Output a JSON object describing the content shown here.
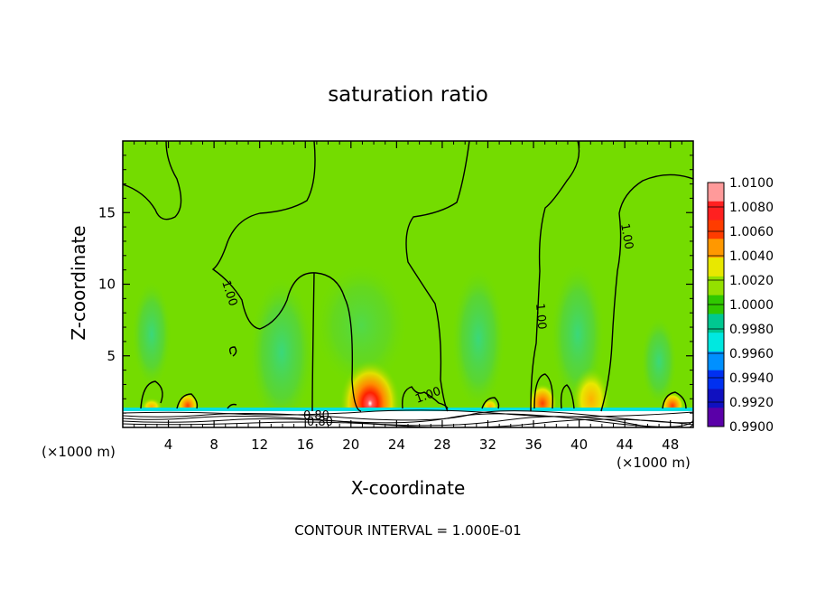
{
  "chart_data": {
    "type": "heatmap",
    "title": "saturation ratio",
    "xlabel": "X-coordinate",
    "ylabel": "Z-coordinate",
    "x_unit_left": "(×1000 m)",
    "x_unit_right": "(×1000 m)",
    "xlim": [
      0,
      50
    ],
    "ylim": [
      0,
      20
    ],
    "x_ticks": [
      "4",
      "8",
      "12",
      "16",
      "20",
      "24",
      "28",
      "32",
      "36",
      "40",
      "44",
      "48"
    ],
    "y_ticks": [
      "5",
      "10",
      "15"
    ],
    "colorbar_labels": [
      "1.0100",
      "1.0080",
      "1.0060",
      "1.0040",
      "1.0020",
      "1.0000",
      "0.9980",
      "0.9960",
      "0.9940",
      "0.9920",
      "0.9900"
    ],
    "colorbar_colors": [
      "#ff9a9a",
      "#ff2020",
      "#ff3c00",
      "#ff9800",
      "#e8e800",
      "#94e000",
      "#30c800",
      "#00c890",
      "#00e8e0",
      "#0090ff",
      "#0030f0",
      "#1010c0",
      "#5a00a8"
    ],
    "contour_labels": [
      "1.00",
      "1.00",
      "1.00",
      "1.00",
      "0.80",
      "0.80"
    ],
    "background_value": 1.0,
    "hotspots": [
      {
        "x": 21.8,
        "z": 2.2,
        "value": 1.008
      },
      {
        "x": 37.0,
        "z": 1.6,
        "value": 1.005
      },
      {
        "x": 40.5,
        "z": 2.0,
        "value": 1.003
      },
      {
        "x": 5.8,
        "z": 1.6,
        "value": 1.004
      },
      {
        "x": 48.0,
        "z": 1.6,
        "value": 1.003
      },
      {
        "x": 31.5,
        "z": 1.5,
        "value": 1.002
      },
      {
        "x": 14.0,
        "z": 6.0,
        "value": 0.9985
      },
      {
        "x": 30.0,
        "z": 6.0,
        "value": 0.9985
      }
    ],
    "footer": "CONTOUR INTERVAL = 1.000E-01"
  }
}
